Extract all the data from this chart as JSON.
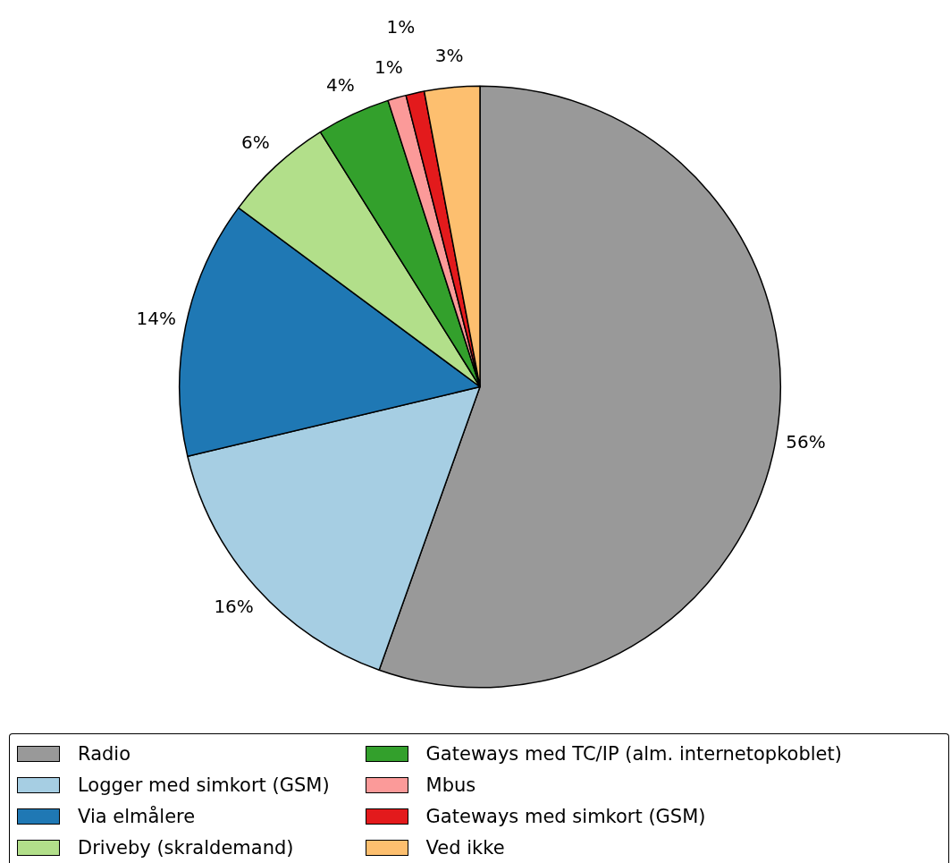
{
  "chart_data": {
    "type": "pie",
    "categories": [
      "Radio",
      "Logger med simkort (GSM)",
      "Via elmålere",
      "Driveby (skraldemand)",
      "Gateways med TC/IP (alm. internetopkoblet)",
      "Mbus",
      "Gateways med simkort (GSM)",
      "Ved ikke"
    ],
    "values": [
      56,
      16,
      14,
      6,
      4,
      1,
      1,
      3
    ],
    "value_labels": [
      "56%",
      "16%",
      "14%",
      "6%",
      "4%",
      "1%",
      "1%",
      "3%"
    ],
    "colors": [
      "#999999",
      "#a6cee3",
      "#1f78b4",
      "#b2df8a",
      "#33a02c",
      "#fb9a99",
      "#e31a1c",
      "#fdbf6f"
    ],
    "legend": "bottom"
  }
}
